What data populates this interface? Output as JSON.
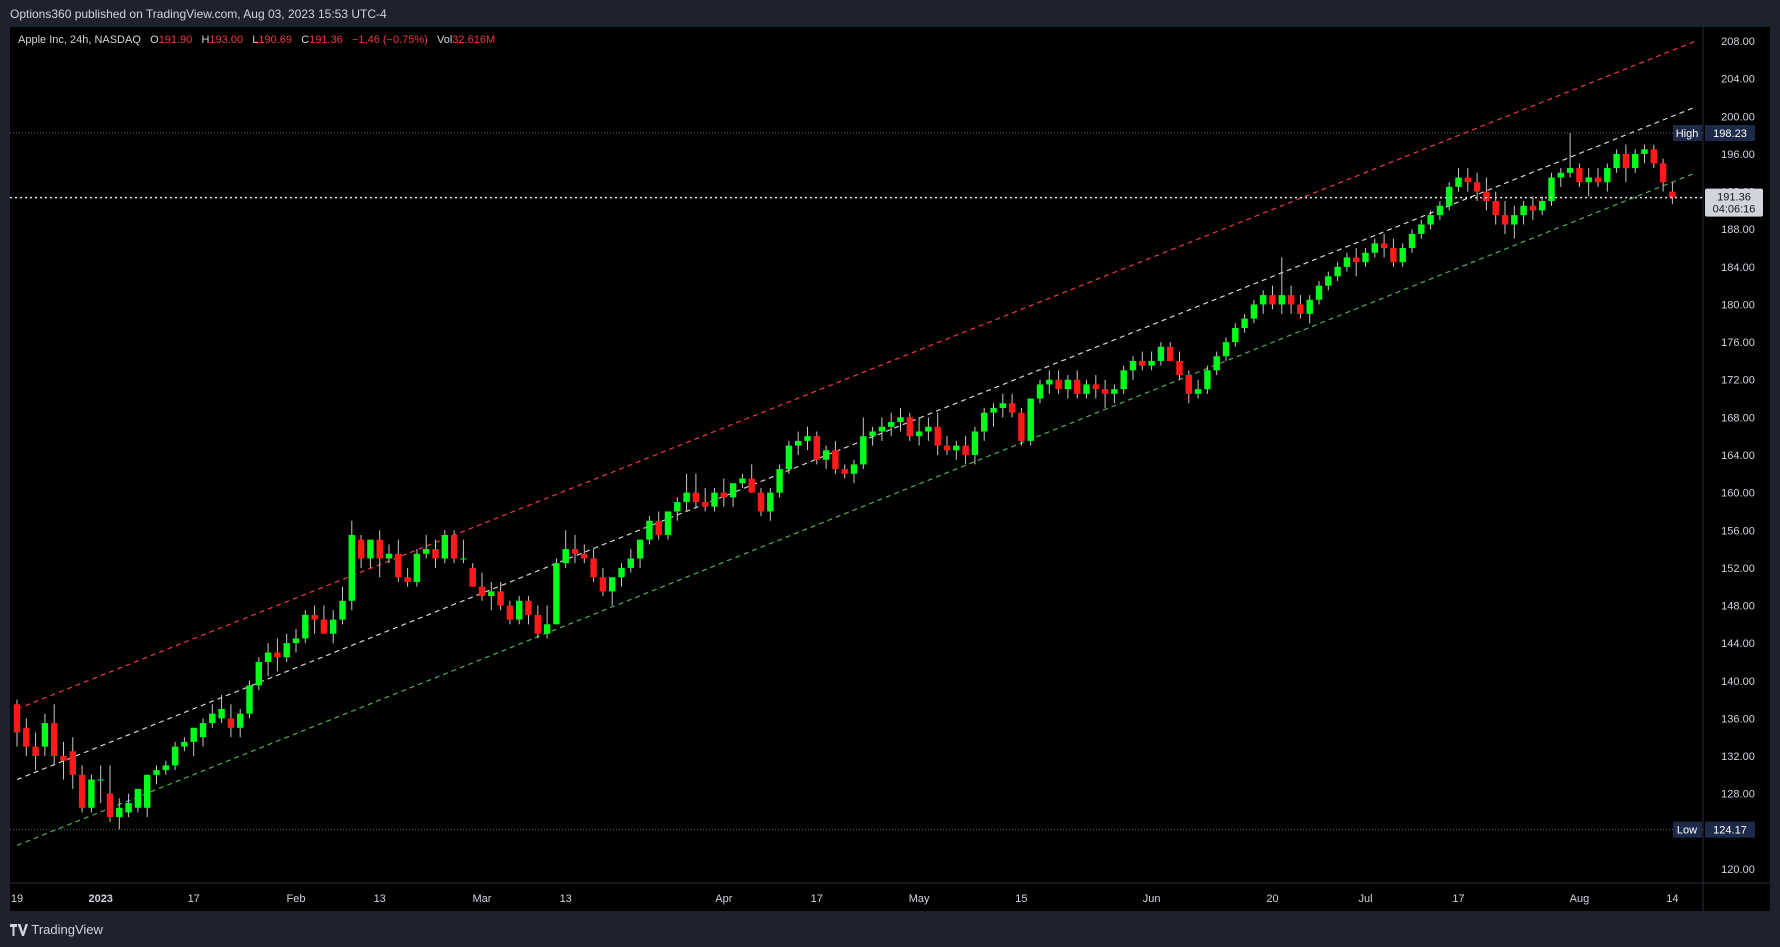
{
  "header": {
    "published": "Options360 published on TradingView.com, Aug 03, 2023 15:53 UTC-4"
  },
  "legend": {
    "symbol": "Apple Inc, 24h, NASDAQ",
    "o_label": "O",
    "o": "191.90",
    "h_label": "H",
    "h": "193.00",
    "l_label": "L",
    "l": "190.69",
    "c_label": "C",
    "c": "191.36",
    "change": "−1.46 (−0.75%)",
    "vol_label": "Vol",
    "vol": "32.616M"
  },
  "footer": {
    "brand": "TradingView",
    "brand_icon": "tradingview-logo-icon"
  },
  "chart_data": {
    "type": "candlestick",
    "symbol": "Apple Inc",
    "interval": "24h",
    "exchange": "NASDAQ",
    "y_ticks": [
      120,
      124,
      128,
      132,
      136,
      140,
      144,
      148,
      152,
      156,
      160,
      164,
      168,
      172,
      176,
      180,
      184,
      188,
      192,
      196,
      200,
      204,
      208
    ],
    "y_tick_labels": [
      "120.00",
      "124.00",
      "128.00",
      "132.00",
      "136.00",
      "140.00",
      "144.00",
      "148.00",
      "152.00",
      "156.00",
      "160.00",
      "164.00",
      "168.00",
      "172.00",
      "176.00",
      "180.00",
      "184.00",
      "188.00",
      "192.00",
      "196.00",
      "200.00",
      "204.00",
      "208.00"
    ],
    "ylim": [
      118.5,
      209.5
    ],
    "x_ticks": [
      {
        "i": 0,
        "label": "19"
      },
      {
        "i": 9,
        "label": "2023"
      },
      {
        "i": 19,
        "label": "17"
      },
      {
        "i": 30,
        "label": "Feb"
      },
      {
        "i": 39,
        "label": "13"
      },
      {
        "i": 50,
        "label": "Mar"
      },
      {
        "i": 59,
        "label": "13"
      },
      {
        "i": 76,
        "label": "Apr"
      },
      {
        "i": 86,
        "label": "17"
      },
      {
        "i": 97,
        "label": "May"
      },
      {
        "i": 108,
        "label": "15"
      },
      {
        "i": 122,
        "label": "Jun"
      },
      {
        "i": 135,
        "label": "20"
      },
      {
        "i": 145,
        "label": "Jul"
      },
      {
        "i": 155,
        "label": "17"
      },
      {
        "i": 168,
        "label": "Aug"
      },
      {
        "i": 178,
        "label": "14"
      }
    ],
    "high_marker": {
      "label": "High",
      "value": 198.23,
      "text": "198.23"
    },
    "low_marker": {
      "label": "Low",
      "value": 124.17,
      "text": "124.17"
    },
    "last_price": {
      "value": 191.36,
      "text": "191.36",
      "countdown": "04:06:16"
    },
    "trend_lines": [
      {
        "name": "upper-channel",
        "color": "#f23645",
        "from": {
          "i": 0,
          "y": 137
        },
        "to": {
          "i": 180.5,
          "y": 208
        }
      },
      {
        "name": "middle-channel",
        "color": "#d1d4dc",
        "from": {
          "i": 0,
          "y": 129.5
        },
        "to": {
          "i": 180.5,
          "y": 201
        }
      },
      {
        "name": "lower-channel",
        "color": "#4caf50",
        "from": {
          "i": 0,
          "y": 122.5
        },
        "to": {
          "i": 180.5,
          "y": 194
        }
      }
    ],
    "candles": [
      [
        137.5,
        138,
        133,
        134.5
      ],
      [
        135,
        136,
        132,
        133
      ],
      [
        133,
        134.5,
        130.5,
        132
      ],
      [
        133,
        136.5,
        132,
        135.5
      ],
      [
        135.5,
        137.5,
        131,
        132
      ],
      [
        132,
        133.5,
        129.5,
        131.5
      ],
      [
        132.5,
        134,
        128.5,
        130
      ],
      [
        130,
        131,
        126,
        126.5
      ],
      [
        126.5,
        130,
        126,
        129.5
      ],
      [
        129.5,
        131,
        127,
        129.5
      ],
      [
        128,
        131,
        125,
        125.5
      ],
      [
        125.5,
        127.5,
        124.2,
        126.5
      ],
      [
        126,
        128,
        125.5,
        127
      ],
      [
        126.5,
        128.5,
        126,
        128.5
      ],
      [
        126.5,
        130,
        125.5,
        130
      ],
      [
        130,
        131,
        129,
        130.5
      ],
      [
        130.5,
        131.5,
        130,
        131
      ],
      [
        131,
        133.5,
        130.5,
        133
      ],
      [
        133,
        134,
        132.5,
        133.5
      ],
      [
        133.5,
        135,
        132,
        135
      ],
      [
        134,
        136,
        133,
        135.5
      ],
      [
        135.5,
        137.5,
        135,
        136.5
      ],
      [
        136,
        138.5,
        135.5,
        137
      ],
      [
        136,
        137.5,
        134,
        135
      ],
      [
        135,
        137,
        134,
        136.5
      ],
      [
        136.5,
        140,
        136,
        139.5
      ],
      [
        139.5,
        142.5,
        139,
        142
      ],
      [
        142,
        144,
        140.5,
        143
      ],
      [
        143,
        144.5,
        141,
        142.5
      ],
      [
        142.5,
        145,
        142,
        144
      ],
      [
        144,
        145.5,
        143,
        144.5
      ],
      [
        144.5,
        147.5,
        144,
        147
      ],
      [
        147,
        148,
        145,
        146.5
      ],
      [
        146.5,
        148,
        145,
        145
      ],
      [
        145,
        147.5,
        144,
        146.5
      ],
      [
        146.5,
        150,
        146,
        148.5
      ],
      [
        148.5,
        157,
        147.5,
        155.5
      ],
      [
        155,
        155.5,
        152,
        153
      ],
      [
        153,
        155,
        152,
        155
      ],
      [
        155,
        156,
        151,
        153
      ],
      [
        153,
        154.5,
        152.5,
        153.5
      ],
      [
        153.5,
        155,
        150.5,
        151
      ],
      [
        151,
        152,
        150,
        150.5
      ],
      [
        150.5,
        154,
        150,
        153.5
      ],
      [
        153.5,
        155.5,
        153,
        154
      ],
      [
        154,
        155,
        152,
        153
      ],
      [
        153,
        156,
        152.5,
        155.5
      ],
      [
        155.5,
        156,
        152.5,
        153
      ],
      [
        153,
        155,
        152.5,
        153
      ],
      [
        152,
        152.5,
        150,
        150
      ],
      [
        150,
        151.5,
        148.5,
        149
      ],
      [
        149,
        150.5,
        147.5,
        149.5
      ],
      [
        149.5,
        150.5,
        147.5,
        148
      ],
      [
        148,
        148.5,
        146,
        146.5
      ],
      [
        146.5,
        149,
        146,
        148.5
      ],
      [
        148.5,
        149,
        146,
        147
      ],
      [
        147,
        148,
        144.5,
        145
      ],
      [
        145,
        148,
        144.5,
        146
      ],
      [
        146,
        153,
        146,
        152.5
      ],
      [
        152.5,
        156,
        152,
        154
      ],
      [
        154,
        155.5,
        152.5,
        153.5
      ],
      [
        153.5,
        154.5,
        152.5,
        153
      ],
      [
        153,
        154,
        150.5,
        151
      ],
      [
        151,
        152,
        149,
        149.5
      ],
      [
        149.5,
        151,
        148,
        151
      ],
      [
        151,
        152.5,
        150,
        152
      ],
      [
        152,
        154,
        151.5,
        153
      ],
      [
        153,
        155,
        152,
        155
      ],
      [
        155,
        157.5,
        154.5,
        157
      ],
      [
        157,
        158,
        155,
        155.5
      ],
      [
        155.5,
        158,
        155,
        158
      ],
      [
        158,
        159.5,
        157,
        159
      ],
      [
        159,
        162,
        158,
        160
      ],
      [
        160,
        162,
        158.5,
        159
      ],
      [
        159,
        160.5,
        158,
        158.5
      ],
      [
        158.5,
        160.5,
        158,
        160
      ],
      [
        160,
        161.5,
        158.5,
        159.5
      ],
      [
        159.5,
        161,
        158.5,
        161
      ],
      [
        161,
        162,
        160.5,
        161.5
      ],
      [
        161.5,
        163,
        160,
        160
      ],
      [
        160,
        160.5,
        157.5,
        158
      ],
      [
        158,
        160.5,
        157,
        160
      ],
      [
        160,
        163,
        159.5,
        162.5
      ],
      [
        162.5,
        165.5,
        162,
        165
      ],
      [
        165,
        166.5,
        164,
        165.5
      ],
      [
        165.5,
        167,
        164.5,
        166
      ],
      [
        166,
        166.5,
        163,
        163.5
      ],
      [
        163.5,
        165,
        162.5,
        164.5
      ],
      [
        164.5,
        165.5,
        162,
        162.5
      ],
      [
        162.5,
        163,
        161.5,
        162
      ],
      [
        162,
        163.5,
        161,
        163
      ],
      [
        163,
        168,
        162.5,
        166
      ],
      [
        166,
        167,
        165,
        166.5
      ],
      [
        166.5,
        168,
        165.5,
        167
      ],
      [
        167,
        168.5,
        166,
        167.5
      ],
      [
        167.5,
        169,
        166.5,
        168
      ],
      [
        168,
        168.5,
        165.5,
        166
      ],
      [
        166,
        168,
        165,
        166.5
      ],
      [
        166.5,
        168,
        165.5,
        167
      ],
      [
        167,
        168.5,
        164,
        165
      ],
      [
        165,
        166,
        164,
        164.5
      ],
      [
        164.5,
        165.5,
        163.5,
        165
      ],
      [
        165,
        166,
        163,
        164
      ],
      [
        164,
        167,
        163,
        166.5
      ],
      [
        166.5,
        169,
        165.5,
        168.5
      ],
      [
        168.5,
        169.5,
        167,
        169
      ],
      [
        169,
        170.5,
        168,
        169.5
      ],
      [
        169.5,
        170.5,
        168,
        168.5
      ],
      [
        168.5,
        169,
        165,
        165.5
      ],
      [
        165.5,
        170,
        165,
        170
      ],
      [
        170,
        172,
        169.5,
        171.5
      ],
      [
        171.5,
        173,
        170.5,
        172
      ],
      [
        172,
        173,
        170.5,
        171
      ],
      [
        171,
        172.5,
        170,
        172
      ],
      [
        172,
        173,
        170,
        170.5
      ],
      [
        170.5,
        172,
        170,
        171.5
      ],
      [
        171.5,
        172.5,
        170,
        171
      ],
      [
        171,
        172,
        169,
        170.5
      ],
      [
        170.5,
        171.5,
        169.5,
        171
      ],
      [
        171,
        173.5,
        170.5,
        173
      ],
      [
        173,
        174.5,
        172,
        174
      ],
      [
        174,
        175,
        173,
        173.5
      ],
      [
        173.5,
        175,
        173,
        174
      ],
      [
        174,
        176,
        173.5,
        175.5
      ],
      [
        175.5,
        176,
        174,
        174
      ],
      [
        174,
        175,
        172,
        172.5
      ],
      [
        172.5,
        173,
        169.5,
        170.5
      ],
      [
        170.5,
        172,
        170,
        171
      ],
      [
        171,
        173.5,
        170.5,
        173
      ],
      [
        173,
        175,
        172.5,
        174.5
      ],
      [
        174.5,
        176.5,
        174,
        176
      ],
      [
        176,
        178,
        175.5,
        177.5
      ],
      [
        177.5,
        179,
        177,
        178.5
      ],
      [
        178.5,
        180.5,
        178,
        180
      ],
      [
        180,
        181.5,
        179,
        181
      ],
      [
        181,
        182,
        179.5,
        180
      ],
      [
        180,
        185,
        179,
        181
      ],
      [
        181,
        182,
        179,
        180
      ],
      [
        180,
        181,
        178.5,
        179
      ],
      [
        179,
        181,
        178,
        180.5
      ],
      [
        180.5,
        182.5,
        180,
        182
      ],
      [
        182,
        183.5,
        181.5,
        183
      ],
      [
        183,
        184.5,
        182.5,
        184
      ],
      [
        184,
        185.5,
        183.5,
        185
      ],
      [
        185,
        186,
        183,
        184.5
      ],
      [
        184.5,
        186,
        184,
        185.5
      ],
      [
        185.5,
        187,
        185,
        186.5
      ],
      [
        186.5,
        187.5,
        185,
        186
      ],
      [
        186,
        187,
        184,
        184.5
      ],
      [
        184.5,
        186.5,
        184,
        186
      ],
      [
        186,
        188,
        185.5,
        187.5
      ],
      [
        187.5,
        189,
        187,
        188.5
      ],
      [
        188.5,
        190,
        188,
        189.5
      ],
      [
        189.5,
        191,
        189,
        190.5
      ],
      [
        190.5,
        193,
        190,
        192.5
      ],
      [
        192.5,
        194.5,
        192,
        193.5
      ],
      [
        193.5,
        194.5,
        192,
        193
      ],
      [
        193,
        194,
        191,
        192
      ],
      [
        192,
        193.5,
        190,
        191
      ],
      [
        191,
        192,
        188.5,
        189.5
      ],
      [
        189.5,
        191,
        187.5,
        188.5
      ],
      [
        188.5,
        190.5,
        187,
        189.5
      ],
      [
        189.5,
        191,
        188.5,
        190.5
      ],
      [
        190.5,
        191.5,
        189,
        190
      ],
      [
        190,
        191.5,
        189.5,
        191
      ],
      [
        191,
        194,
        190.5,
        193.5
      ],
      [
        193.5,
        194.5,
        192.5,
        194
      ],
      [
        194,
        198.2,
        193.5,
        194.5
      ],
      [
        194.5,
        195,
        192.5,
        193
      ],
      [
        193,
        194.5,
        191.5,
        193.5
      ],
      [
        193.5,
        194.5,
        192.5,
        193
      ],
      [
        193,
        195,
        192,
        194.5
      ],
      [
        194.5,
        196.5,
        194,
        196
      ],
      [
        196,
        197,
        193,
        194.5
      ],
      [
        194.5,
        196.5,
        194,
        196
      ],
      [
        196,
        197,
        195,
        196.5
      ],
      [
        196.5,
        197,
        194.5,
        195
      ],
      [
        195,
        195.5,
        192,
        193
      ],
      [
        192,
        193,
        190.7,
        191.4
      ]
    ]
  }
}
